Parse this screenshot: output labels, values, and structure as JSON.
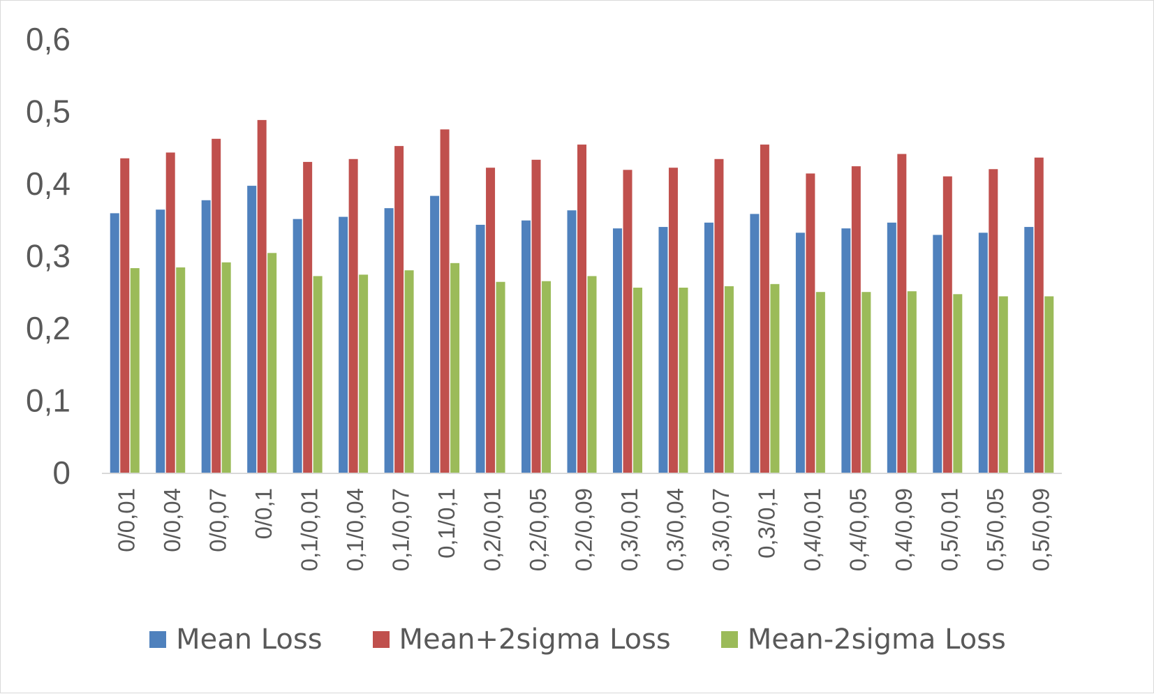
{
  "chart_data": {
    "type": "bar",
    "title": "",
    "xlabel": "",
    "ylabel": "",
    "ylim": [
      0,
      0.6
    ],
    "yticks": [
      "0",
      "0,1",
      "0,2",
      "0,3",
      "0,4",
      "0,5",
      "0,6"
    ],
    "grid": false,
    "legend_position": "bottom",
    "categories": [
      "0/0,01",
      "0/0,04",
      "0/0,07",
      "0/0,1",
      "0,1/0,01",
      "0,1/0,04",
      "0,1/0,07",
      "0,1/0,1",
      "0,2/0,01",
      "0,2/0,05",
      "0,2/0,09",
      "0,3/0,01",
      "0,3/0,04",
      "0,3/0,07",
      "0,3/0,1",
      "0,4/0,01",
      "0,4/0,05",
      "0,4/0,09",
      "0,5/0,01",
      "0,5/0,05",
      "0,5/0,09"
    ],
    "series": [
      {
        "name": "Mean Loss",
        "color": "#4f81bd",
        "values": [
          0.36,
          0.365,
          0.378,
          0.398,
          0.352,
          0.355,
          0.367,
          0.384,
          0.344,
          0.35,
          0.364,
          0.339,
          0.341,
          0.347,
          0.359,
          0.333,
          0.339,
          0.347,
          0.33,
          0.333,
          0.341
        ]
      },
      {
        "name": "Mean+2sigma Loss",
        "color": "#c0504d",
        "values": [
          0.436,
          0.444,
          0.463,
          0.489,
          0.431,
          0.435,
          0.453,
          0.476,
          0.423,
          0.434,
          0.455,
          0.42,
          0.423,
          0.435,
          0.455,
          0.415,
          0.425,
          0.442,
          0.411,
          0.421,
          0.437
        ]
      },
      {
        "name": "Mean-2sigma Loss",
        "color": "#9bbb59",
        "values": [
          0.284,
          0.285,
          0.292,
          0.305,
          0.273,
          0.275,
          0.281,
          0.291,
          0.265,
          0.266,
          0.273,
          0.257,
          0.257,
          0.259,
          0.262,
          0.251,
          0.251,
          0.252,
          0.248,
          0.245,
          0.245
        ]
      }
    ]
  }
}
